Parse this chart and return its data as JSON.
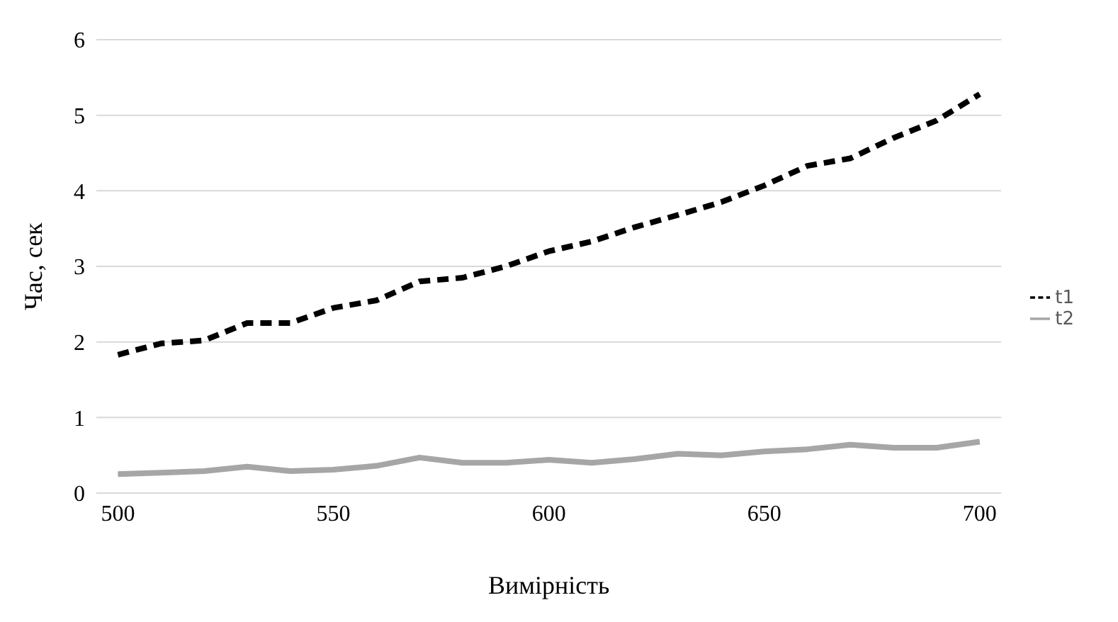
{
  "chart_data": {
    "type": "line",
    "xlabel": "Вимірність",
    "ylabel": "Час, сек",
    "x": [
      500,
      510,
      520,
      530,
      540,
      550,
      560,
      570,
      580,
      590,
      600,
      610,
      620,
      630,
      640,
      650,
      660,
      670,
      680,
      690,
      700
    ],
    "series": [
      {
        "name": "t1",
        "color": "#000000",
        "line_style": "dashed",
        "values": [
          1.83,
          1.98,
          2.02,
          2.25,
          2.25,
          2.45,
          2.55,
          2.8,
          2.85,
          3.0,
          3.2,
          3.33,
          3.52,
          3.68,
          3.85,
          4.07,
          4.33,
          4.43,
          4.7,
          4.93,
          5.28
        ]
      },
      {
        "name": "t2",
        "color": "#a6a6a6",
        "line_style": "solid",
        "values": [
          0.25,
          0.27,
          0.29,
          0.35,
          0.29,
          0.31,
          0.36,
          0.47,
          0.4,
          0.4,
          0.44,
          0.4,
          0.45,
          0.52,
          0.5,
          0.55,
          0.58,
          0.64,
          0.6,
          0.6,
          0.68
        ]
      }
    ],
    "xlim": [
      495,
      705
    ],
    "xticks": [
      500,
      550,
      600,
      650,
      700
    ],
    "ylim": [
      0,
      6
    ],
    "yticks": [
      0,
      1,
      2,
      3,
      4,
      5,
      6
    ],
    "grid": "y",
    "legend": "right",
    "marker": "none"
  }
}
